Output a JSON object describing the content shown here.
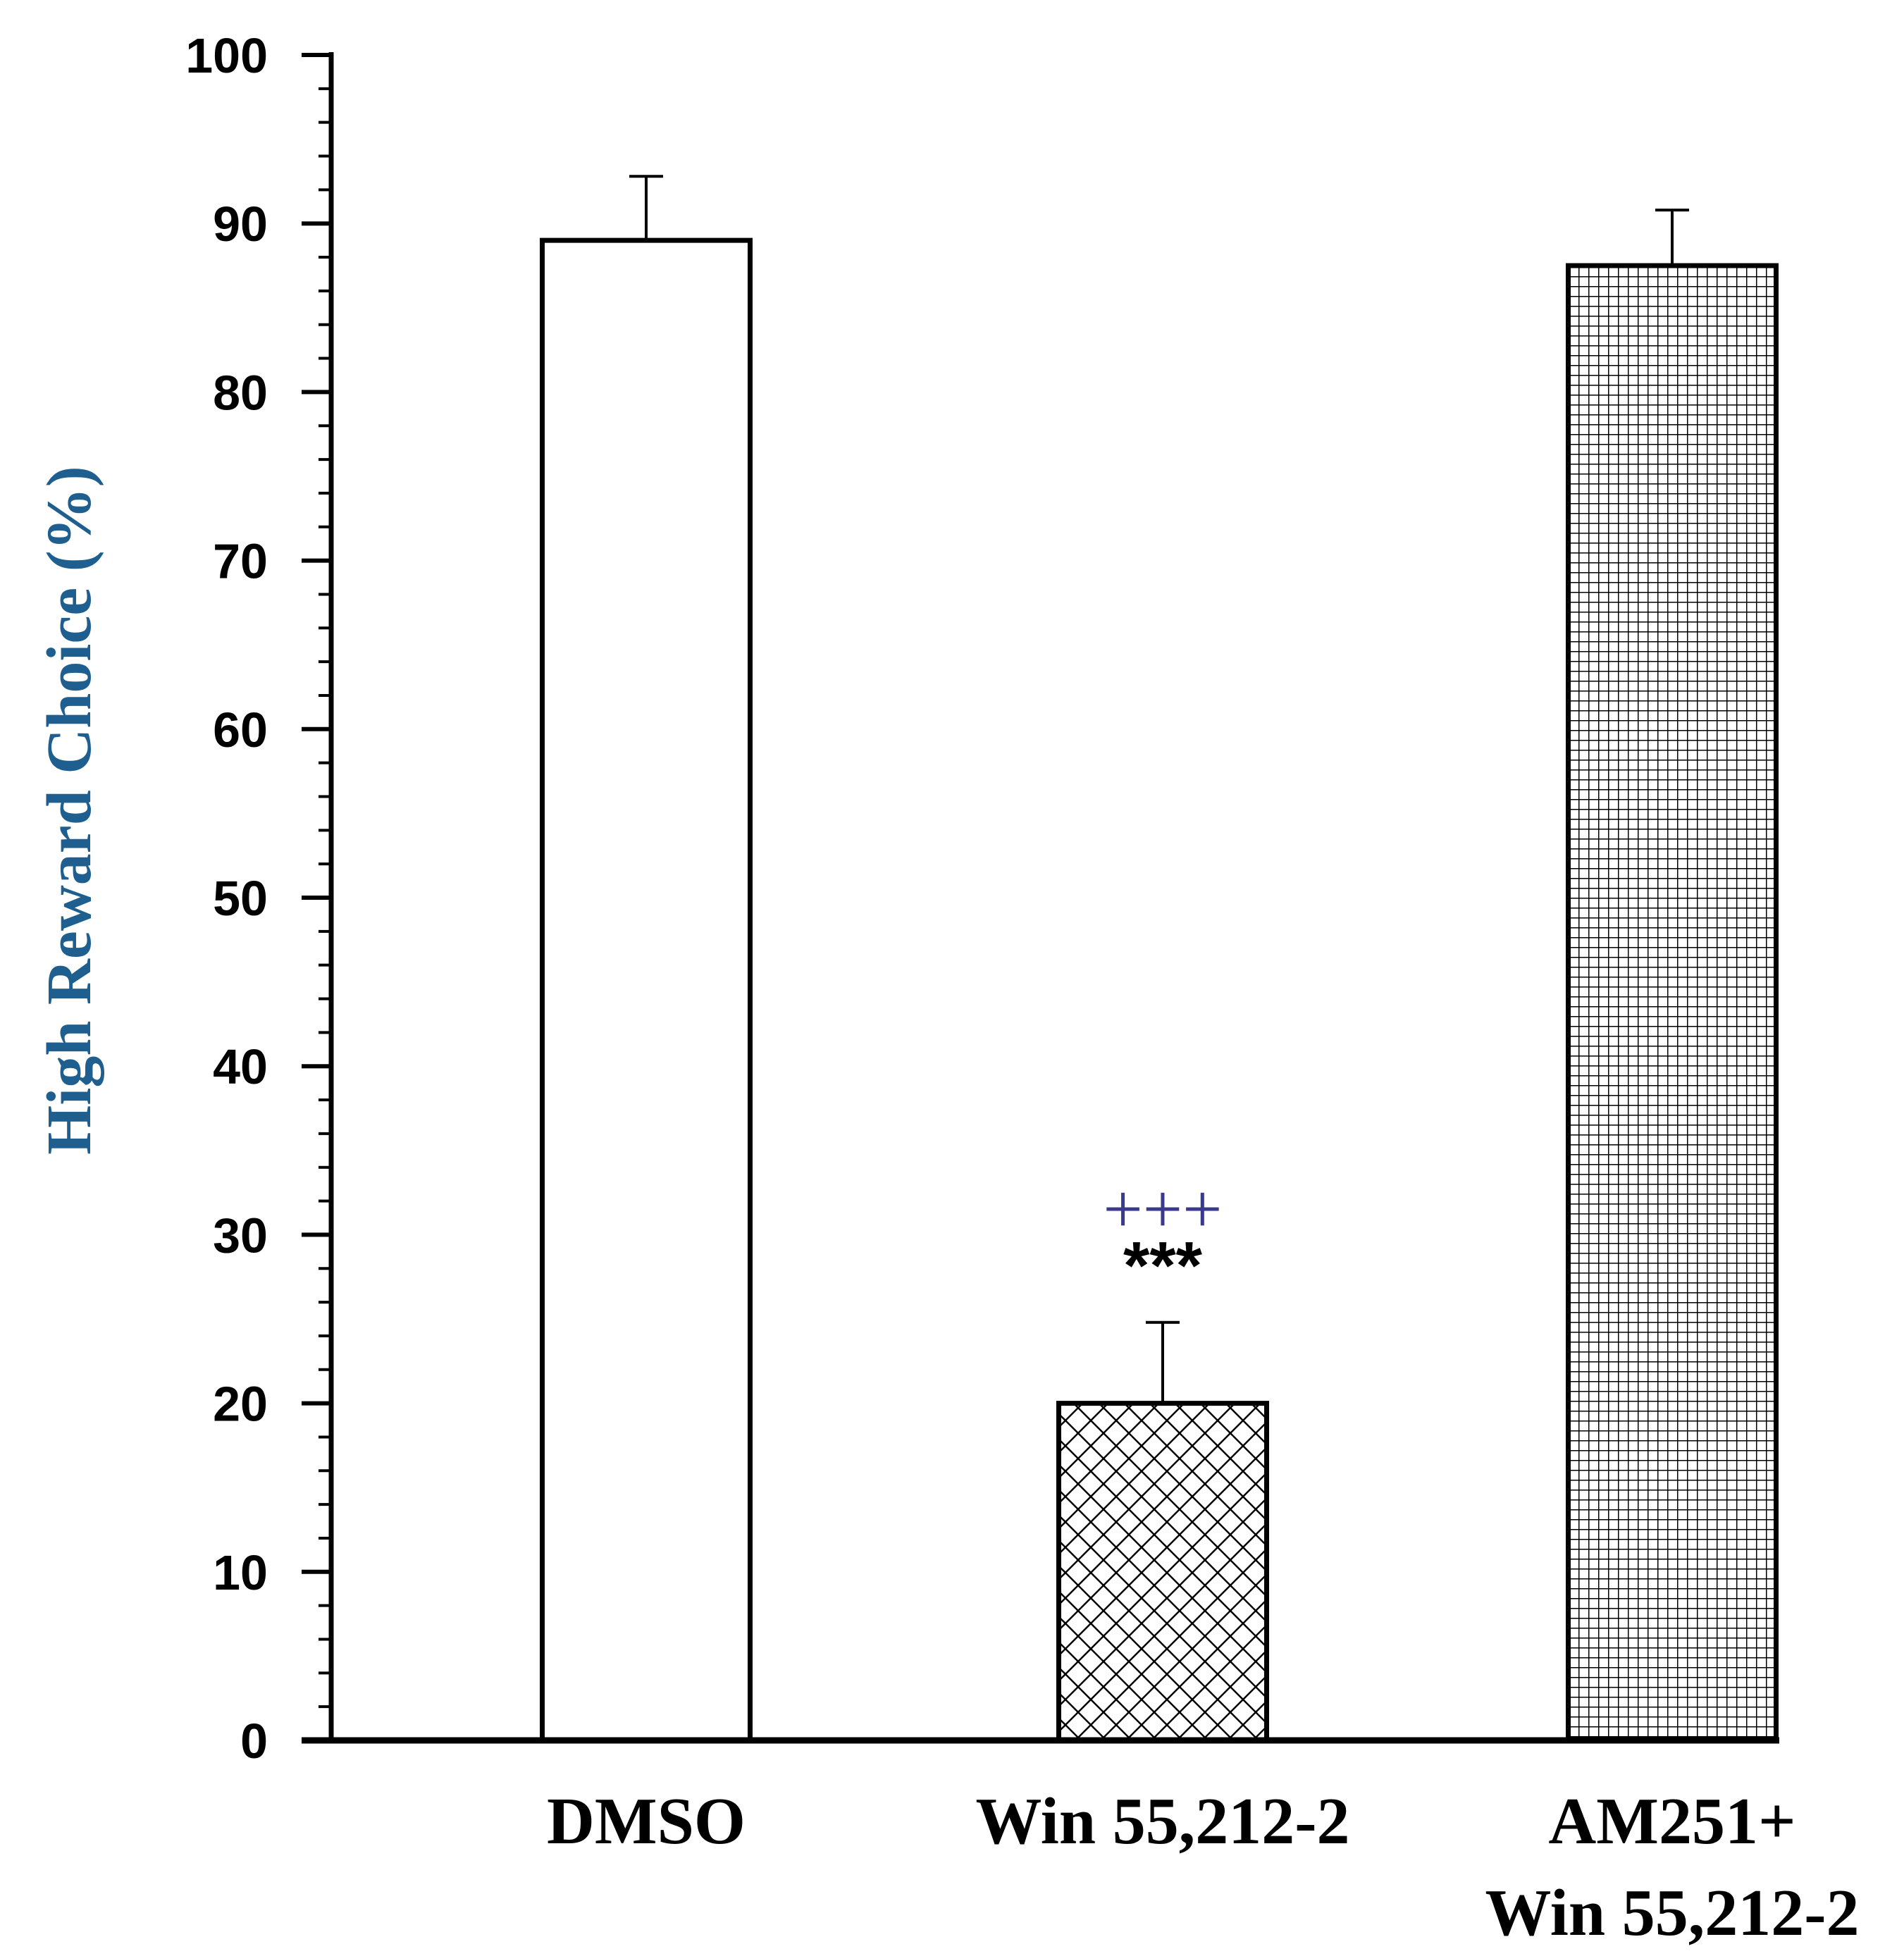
{
  "chart_data": {
    "type": "bar",
    "title": "",
    "xlabel": "",
    "ylabel": "High Reward Choice (%)",
    "ylim": [
      0,
      100
    ],
    "yticks": [
      "0",
      "10",
      "20",
      "30",
      "40",
      "50",
      "60",
      "70",
      "80",
      "90",
      "100"
    ],
    "categories": [
      {
        "lines": [
          "DMSO"
        ]
      },
      {
        "lines": [
          "Win 55,212-2"
        ]
      },
      {
        "lines": [
          "AM251+",
          "Win 55,212-2"
        ]
      }
    ],
    "values": [
      89,
      20,
      87.5
    ],
    "errors": [
      3.8,
      4.8,
      3.3
    ],
    "fills": [
      "solid-white",
      "crosshatch-diagonal",
      "grid-square"
    ],
    "annotations": [
      {
        "category_index": 1,
        "plus": "+++",
        "stars": "***"
      }
    ],
    "grid": false
  },
  "colors": {
    "axis": "#000000",
    "bar_edge": "#000000",
    "ylabel": "#1f5f8f",
    "plus_sign": "#3a3a8c",
    "background": "#ffffff"
  }
}
